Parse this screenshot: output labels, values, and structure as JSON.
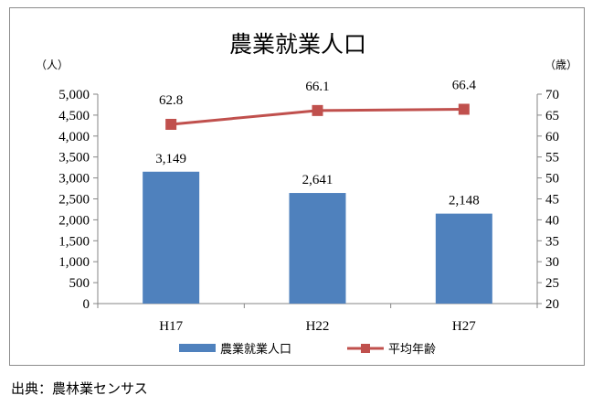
{
  "chart_data": {
    "type": "bar",
    "title": "農業就業人口",
    "categories": [
      "H17",
      "H22",
      "H27"
    ],
    "y_left_unit": "（人）",
    "y_right_unit": "（歳）",
    "ylim_left": [
      0,
      5000
    ],
    "yticks_left": [
      "0",
      "500",
      "1,000",
      "1,500",
      "2,000",
      "2,500",
      "3,000",
      "3,500",
      "4,000",
      "4,500",
      "5,000"
    ],
    "ylim_right": [
      20,
      70
    ],
    "yticks_right": [
      "20",
      "25",
      "30",
      "35",
      "40",
      "45",
      "50",
      "55",
      "60",
      "65",
      "70"
    ],
    "series": [
      {
        "name": "農業就業人口",
        "type": "bar",
        "axis": "left",
        "values": [
          3149,
          2641,
          2148
        ],
        "labels": [
          "3,149",
          "2,641",
          "2,148"
        ],
        "color": "#4f81bd"
      },
      {
        "name": "平均年齢",
        "type": "line",
        "axis": "right",
        "values": [
          62.8,
          66.1,
          66.4
        ],
        "labels": [
          "62.8",
          "66.1",
          "66.4"
        ],
        "color": "#c0504d"
      }
    ],
    "grid": false,
    "legend": "bottom"
  },
  "source_note": "出典：農林業センサス"
}
